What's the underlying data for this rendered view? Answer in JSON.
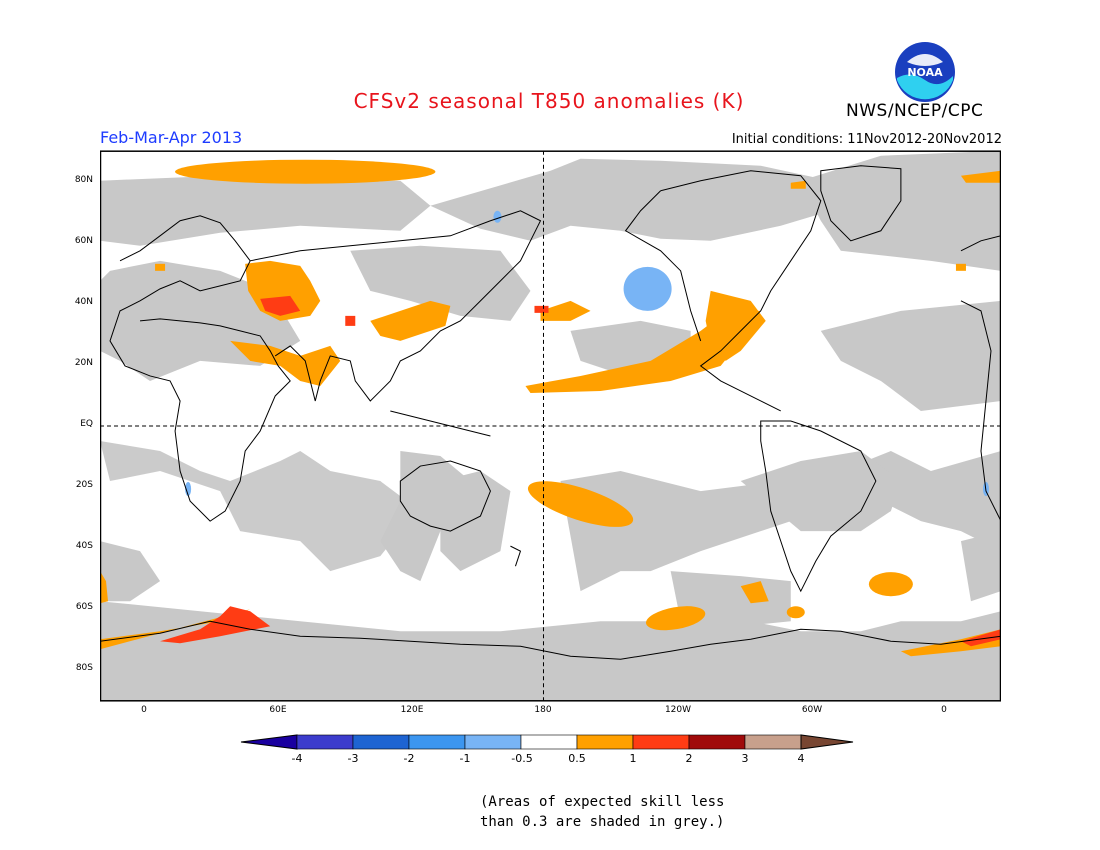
{
  "header": {
    "title": "CFSv2 seasonal T850 anomalies (K)",
    "season": "Feb-Mar-Apr 2013",
    "initial_conditions": "Initial conditions: 11Nov2012-20Nov2012",
    "agency": "NWS/NCEP/CPC",
    "logo_text": "NOAA"
  },
  "map": {
    "lat_labels": [
      "80N",
      "60N",
      "40N",
      "20N",
      "EQ",
      "20S",
      "40S",
      "60S",
      "80S"
    ],
    "lon_labels": [
      "0",
      "60E",
      "120E",
      "180",
      "120W",
      "60W",
      "0"
    ],
    "colors": {
      "skill_mask": "#c8c8c8",
      "ocean_land_bg": "#ffffff",
      "coast": "#000000"
    }
  },
  "colorbar": {
    "labels": [
      "-4",
      "-3",
      "-2",
      "-1",
      "-0.5",
      "0.5",
      "1",
      "2",
      "3",
      "4"
    ],
    "colors": [
      "#1a00a0",
      "#3c3ccc",
      "#1e64d2",
      "#3c96f0",
      "#78b4f5",
      "#ffffff",
      "#ffa000",
      "#ff3c14",
      "#a00a0a",
      "#c8a08c",
      "#784632"
    ]
  },
  "note": {
    "line1": "(Areas of expected skill less",
    "line2": "than 0.3 are shaded in grey.)"
  }
}
